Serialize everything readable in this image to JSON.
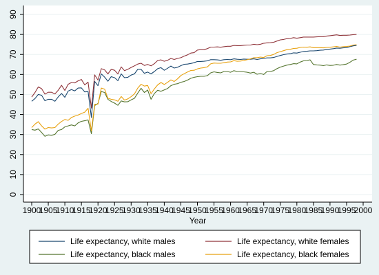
{
  "chart_data": {
    "type": "line",
    "title": "",
    "xlabel": "Year",
    "ylabel": "",
    "xlim": [
      1900,
      2000
    ],
    "ylim": [
      0,
      90
    ],
    "x_ticks": [
      1900,
      1905,
      1910,
      1915,
      1920,
      1925,
      1930,
      1935,
      1940,
      1945,
      1950,
      1955,
      1960,
      1965,
      1970,
      1975,
      1980,
      1985,
      1990,
      1995,
      2000
    ],
    "y_ticks": [
      0,
      10,
      20,
      30,
      40,
      50,
      60,
      70,
      80,
      90
    ],
    "grid": "horizontal",
    "legend_position": "bottom",
    "x": [
      1900,
      1901,
      1902,
      1903,
      1904,
      1905,
      1906,
      1907,
      1908,
      1909,
      1910,
      1911,
      1912,
      1913,
      1914,
      1915,
      1916,
      1917,
      1918,
      1919,
      1920,
      1921,
      1922,
      1923,
      1924,
      1925,
      1926,
      1927,
      1928,
      1929,
      1930,
      1931,
      1932,
      1933,
      1934,
      1935,
      1936,
      1937,
      1938,
      1939,
      1940,
      1941,
      1942,
      1943,
      1944,
      1945,
      1946,
      1947,
      1948,
      1949,
      1950,
      1951,
      1952,
      1953,
      1954,
      1955,
      1956,
      1957,
      1958,
      1959,
      1960,
      1961,
      1962,
      1963,
      1964,
      1965,
      1966,
      1967,
      1968,
      1969,
      1970,
      1971,
      1972,
      1973,
      1974,
      1975,
      1976,
      1977,
      1978,
      1979,
      1980,
      1981,
      1982,
      1983,
      1984,
      1985,
      1986,
      1987,
      1988,
      1989,
      1990,
      1991,
      1992,
      1993,
      1994,
      1995,
      1996,
      1997,
      1998
    ],
    "series": [
      {
        "name": "Life expectancy, white males",
        "color": "#1a476f",
        "values": [
          46.6,
          48.0,
          50.0,
          49.6,
          46.9,
          47.6,
          47.6,
          46.6,
          48.8,
          50.5,
          48.6,
          51.7,
          52.5,
          51.8,
          53.2,
          53.3,
          51.3,
          51.5,
          38.5,
          56.5,
          54.4,
          60.3,
          58.7,
          56.6,
          58.9,
          58.4,
          56.9,
          60.3,
          58.4,
          58.6,
          59.7,
          60.3,
          62.6,
          62.6,
          60.6,
          61.2,
          60.3,
          61.5,
          62.9,
          63.4,
          62.1,
          63.1,
          64.2,
          63.2,
          63.6,
          64.4,
          65.1,
          65.2,
          65.5,
          65.9,
          66.5,
          66.5,
          66.6,
          66.8,
          67.4,
          67.4,
          67.3,
          67.1,
          67.4,
          67.5,
          67.4,
          67.8,
          67.6,
          67.5,
          67.7,
          67.6,
          67.6,
          67.8,
          67.5,
          67.8,
          68.0,
          68.3,
          68.3,
          68.5,
          69.0,
          69.5,
          69.9,
          70.2,
          70.4,
          70.8,
          70.7,
          71.1,
          71.5,
          71.6,
          71.8,
          71.8,
          71.9,
          72.1,
          72.2,
          72.5,
          72.7,
          72.9,
          73.2,
          73.1,
          73.3,
          73.4,
          73.9,
          74.3,
          74.5
        ]
      },
      {
        "name": "Life expectancy, white females",
        "color": "#90353b",
        "values": [
          48.7,
          51.0,
          53.8,
          52.9,
          50.2,
          51.1,
          51.1,
          50.3,
          52.1,
          54.6,
          52.0,
          55.1,
          56.0,
          55.8,
          56.8,
          57.5,
          54.8,
          56.2,
          43.2,
          59.8,
          57.2,
          62.9,
          62.3,
          60.3,
          62.6,
          62.1,
          60.3,
          63.8,
          61.9,
          62.6,
          63.5,
          64.3,
          65.2,
          65.6,
          64.5,
          65.0,
          64.3,
          65.4,
          67.0,
          67.3,
          66.6,
          67.1,
          68.0,
          67.5,
          68.0,
          68.4,
          69.2,
          69.8,
          70.7,
          70.9,
          72.2,
          72.4,
          72.4,
          72.9,
          73.7,
          73.7,
          73.8,
          73.6,
          73.9,
          74.1,
          74.1,
          74.5,
          74.4,
          74.4,
          74.6,
          74.7,
          74.7,
          75.1,
          74.9,
          75.1,
          75.6,
          75.8,
          75.9,
          76.1,
          76.7,
          77.3,
          77.5,
          77.9,
          78.0,
          78.4,
          78.1,
          78.4,
          78.7,
          78.7,
          78.7,
          78.7,
          78.8,
          78.9,
          78.9,
          79.2,
          79.4,
          79.6,
          79.8,
          79.5,
          79.6,
          79.6,
          79.7,
          79.9,
          80.0
        ]
      },
      {
        "name": "Life expectancy, black males",
        "color": "#55752f",
        "values": [
          32.5,
          32.2,
          32.8,
          31.0,
          29.1,
          29.8,
          29.6,
          30.1,
          32.1,
          32.5,
          33.8,
          34.3,
          34.8,
          34.3,
          35.8,
          36.6,
          36.9,
          37.3,
          30.4,
          44.5,
          45.5,
          51.5,
          51.0,
          47.6,
          46.5,
          45.7,
          44.6,
          46.8,
          46.3,
          46.4,
          47.3,
          48.1,
          50.7,
          53.1,
          51.0,
          52.2,
          47.6,
          50.5,
          52.1,
          51.6,
          52.3,
          53.0,
          54.4,
          55.1,
          55.4,
          56.1,
          56.5,
          57.2,
          58.1,
          58.6,
          58.9,
          59.1,
          59.1,
          59.4,
          60.8,
          61.3,
          61.0,
          60.8,
          61.5,
          61.5,
          61.1,
          61.9,
          61.5,
          61.5,
          61.3,
          61.1,
          60.7,
          61.1,
          60.1,
          60.5,
          60.0,
          61.5,
          61.5,
          61.9,
          62.9,
          63.7,
          64.2,
          64.7,
          65.0,
          65.4,
          65.3,
          66.2,
          66.8,
          67.0,
          67.3,
          65.0,
          64.8,
          64.7,
          64.4,
          64.8,
          64.5,
          64.6,
          65.0,
          64.7,
          64.9,
          65.2,
          66.1,
          67.2,
          67.6
        ]
      },
      {
        "name": "Life expectancy, black females",
        "color": "#e8a110",
        "values": [
          33.5,
          35.2,
          36.4,
          34.3,
          32.7,
          33.5,
          33.3,
          33.5,
          35.2,
          36.5,
          37.5,
          37.1,
          38.5,
          39.2,
          39.7,
          40.5,
          41.2,
          43.1,
          31.8,
          45.1,
          45.2,
          53.2,
          52.7,
          48.1,
          47.6,
          47.3,
          46.6,
          49.0,
          47.2,
          47.8,
          48.9,
          50.3,
          53.2,
          55.1,
          54.2,
          54.5,
          50.4,
          52.8,
          54.8,
          56.0,
          55.0,
          56.1,
          57.3,
          56.5,
          57.8,
          59.5,
          60.4,
          61.2,
          62.0,
          62.1,
          62.8,
          63.2,
          63.4,
          63.8,
          65.3,
          65.7,
          65.6,
          65.6,
          65.9,
          66.2,
          66.3,
          66.9,
          66.6,
          66.7,
          67.0,
          67.4,
          67.8,
          68.4,
          68.4,
          68.7,
          68.5,
          69.4,
          69.5,
          70.0,
          70.9,
          71.4,
          71.9,
          72.4,
          72.6,
          73.0,
          73.1,
          73.5,
          73.7,
          73.6,
          73.8,
          73.4,
          73.4,
          73.4,
          73.3,
          73.5,
          73.6,
          73.8,
          74.0,
          73.7,
          73.9,
          74.0,
          74.2,
          74.7,
          74.9
        ]
      }
    ]
  }
}
